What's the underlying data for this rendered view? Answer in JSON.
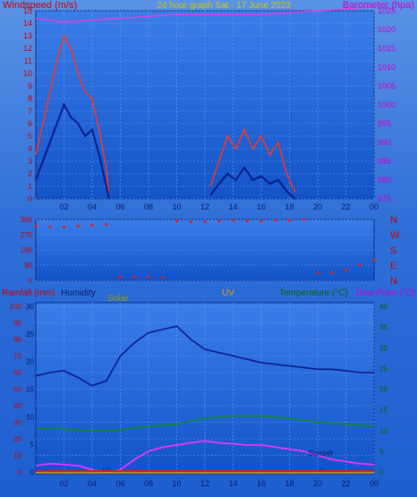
{
  "colors": {
    "wind": "#e0201a",
    "gust": "#ff3322",
    "avg": "#0a1a8a",
    "baro": "#e040e0",
    "dir": "#e0201a",
    "humidity": "#0a1a8a",
    "temperature": "#0f8a2a",
    "dewpoint": "#ff30ff",
    "solar": "#b8b000",
    "uv": "#e0a000",
    "rain": "#cc2020",
    "axis_red": "#cc0000",
    "axis_magenta": "#cc00cc",
    "axis_green": "#006600",
    "title": "#c9c900"
  },
  "chart_data": [
    {
      "type": "line",
      "title": "24 hour graph Sat - 17 June 2023",
      "ylabel": "Windspeed (m/s)",
      "y2label": "Barometer (hpa)",
      "ylim": [
        0,
        15
      ],
      "y2lim": [
        975,
        1025
      ],
      "yticks": [
        "0",
        "1",
        "2",
        "3",
        "4",
        "5",
        "6",
        "7",
        "8",
        "9",
        "10",
        "11",
        "12",
        "13",
        "14",
        "15"
      ],
      "y2ticks": [
        "975",
        "980",
        "985",
        "990",
        "995",
        "1000",
        "1005",
        "1010",
        "1015",
        "1020",
        "1025"
      ],
      "xticks": [
        "02",
        "04",
        "06",
        "08",
        "10",
        "12",
        "14",
        "16",
        "18",
        "20",
        "22",
        "00"
      ],
      "series": [
        {
          "kind": "gust",
          "x": [
            0.0,
            0.5,
            1.0,
            1.5,
            2.0,
            2.5,
            3.0,
            3.5,
            4.0,
            4.5,
            5.0,
            5.2
          ],
          "y": [
            3.5,
            6.0,
            8.5,
            11.0,
            13.0,
            12.0,
            10.0,
            8.5,
            8.0,
            5.5,
            2.5,
            0
          ]
        },
        {
          "kind": "avg",
          "x": [
            0.0,
            0.5,
            1.0,
            1.5,
            2.0,
            2.5,
            3.0,
            3.5,
            4.0,
            4.5,
            5.0,
            5.2
          ],
          "y": [
            1.5,
            3.0,
            4.5,
            6.0,
            7.5,
            6.5,
            6.0,
            5.0,
            5.5,
            3.5,
            1.0,
            0
          ]
        },
        {
          "kind": "gust",
          "x": [
            12.4,
            13.0,
            13.6,
            14.2,
            14.8,
            15.4,
            16.0,
            16.6,
            17.2,
            17.8,
            18.4
          ],
          "y": [
            1.0,
            3.0,
            5.0,
            4.0,
            5.5,
            4.0,
            5.0,
            3.5,
            4.5,
            2.0,
            0.5
          ]
        },
        {
          "kind": "avg",
          "x": [
            12.4,
            13.0,
            13.6,
            14.2,
            14.8,
            15.4,
            16.0,
            16.6,
            17.2,
            17.8,
            18.4
          ],
          "y": [
            0.3,
            1.2,
            2.0,
            1.5,
            2.5,
            1.5,
            1.8,
            1.2,
            1.5,
            0.6,
            0
          ]
        },
        {
          "kind": "baro",
          "x": [
            0,
            2,
            4,
            6,
            8,
            10,
            12,
            14,
            16,
            18,
            20,
            22,
            24
          ],
          "y": [
            1023,
            1022,
            1022.5,
            1023,
            1023.5,
            1024,
            1024,
            1024,
            1024,
            1024.5,
            1025,
            1025.5,
            1026
          ]
        }
      ]
    },
    {
      "type": "scatter",
      "ylabels": [
        "N",
        "W",
        "S",
        "E",
        "N"
      ],
      "yticks": [
        "360",
        "270",
        "180",
        "90",
        "0"
      ],
      "ylim": [
        0,
        360
      ],
      "x": [
        0,
        1,
        2,
        3,
        4,
        5,
        6,
        7,
        8,
        9,
        10,
        11,
        12,
        13,
        14,
        15,
        16,
        17,
        18,
        19,
        20,
        21,
        22,
        23,
        24
      ],
      "y": [
        320,
        315,
        315,
        320,
        325,
        330,
        20,
        20,
        20,
        15,
        350,
        345,
        345,
        350,
        355,
        350,
        350,
        355,
        355,
        360,
        45,
        45,
        60,
        90,
        120
      ]
    },
    {
      "type": "line",
      "left_label_rain": "Rainfall (mm)",
      "label_humidity": "Humidity",
      "label_solar": "Solar",
      "label_uv": "UV",
      "label_temperature": "Temperature (°C)",
      "label_dewpoint": "Dew Point (°C)",
      "annotation_sunset": "Sunset",
      "left_ticks": [
        "0",
        "10",
        "20",
        "30",
        "40",
        "50",
        "60",
        "70",
        "80",
        "90",
        "100"
      ],
      "mid_ticks": [
        "0",
        "5",
        "10",
        "15",
        "20",
        "25",
        "30"
      ],
      "right_ticks": [
        "0",
        "5",
        "10",
        "15",
        "20",
        "25",
        "30",
        "35",
        "40"
      ],
      "xticks": [
        "02",
        "04",
        "06",
        "08",
        "10",
        "12",
        "14",
        "16",
        "18",
        "20",
        "22",
        "00"
      ],
      "series": [
        {
          "kind": "humidity",
          "x": [
            0,
            1,
            2,
            3,
            4,
            5,
            6,
            7,
            8,
            9,
            10,
            11,
            12,
            13,
            14,
            15,
            16,
            17,
            18,
            19,
            20,
            21,
            22,
            23,
            24
          ],
          "y": [
            58,
            60,
            61,
            57,
            52,
            55,
            70,
            78,
            84,
            86,
            88,
            80,
            74,
            72,
            70,
            68,
            66,
            65,
            64,
            63,
            62,
            62,
            61,
            60,
            60
          ]
        },
        {
          "kind": "temperature",
          "x": [
            0,
            2,
            4,
            6,
            8,
            10,
            12,
            14,
            16,
            18,
            20,
            22,
            24
          ],
          "y": [
            10.5,
            10.3,
            10.0,
            10.2,
            11.0,
            11.5,
            13.0,
            13.5,
            13.5,
            13.0,
            12.0,
            11.5,
            11.0
          ]
        },
        {
          "kind": "dewpoint",
          "x": [
            0,
            1,
            2,
            3,
            4,
            5,
            6,
            7,
            8,
            9,
            10,
            11,
            12,
            13,
            14,
            15,
            16,
            17,
            18,
            19,
            20,
            21,
            22,
            23,
            24
          ],
          "y": [
            1.5,
            2.0,
            1.8,
            1.5,
            0.5,
            0.0,
            0.5,
            3.0,
            5.0,
            6.0,
            6.5,
            7.0,
            7.5,
            7.0,
            6.8,
            6.5,
            6.5,
            6.0,
            5.5,
            5.0,
            4.0,
            3.0,
            2.5,
            2.0,
            1.8
          ]
        },
        {
          "kind": "solar",
          "x": [
            4.8,
            5.0,
            5.2,
            20.2,
            20.4
          ],
          "y": [
            0.5,
            1.2,
            0.5,
            1.0,
            0.3
          ]
        }
      ]
    }
  ]
}
